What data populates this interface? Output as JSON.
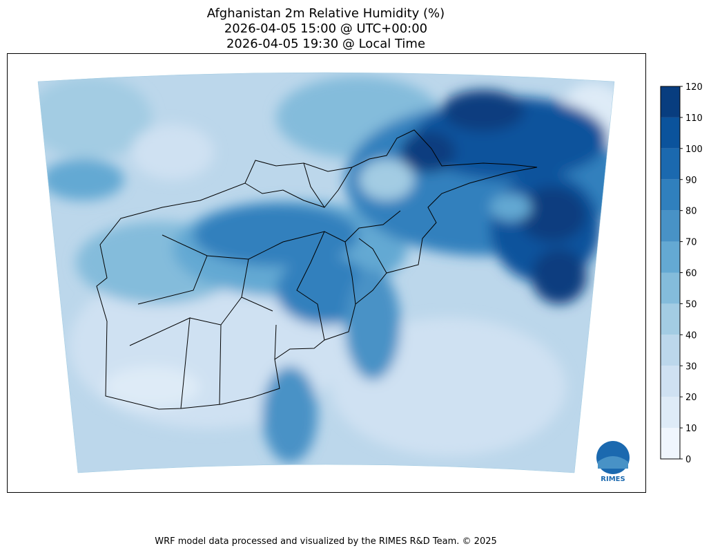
{
  "title": [
    "Afghanistan 2m Relative Humidity (%)",
    "2026-04-05 15:00 @ UTC+00:00",
    "2026-04-05 19:30 @ Local Time"
  ],
  "colorbar": {
    "clim": [
      0,
      120
    ],
    "ticks": [
      0,
      10,
      20,
      30,
      40,
      50,
      60,
      70,
      80,
      90,
      100,
      110,
      120
    ],
    "colors": [
      "#f0f6fd",
      "#deebf7",
      "#cfe1f2",
      "#bcd7eb",
      "#a3cce3",
      "#84bcdb",
      "#64a9d3",
      "#4892c6",
      "#3080bd",
      "#1b69af",
      "#0b539c",
      "#083d7f"
    ]
  },
  "logo": "RIMES",
  "footer": "WRF model data processed and visualized by the RIMES R&D Team. © 2025"
}
